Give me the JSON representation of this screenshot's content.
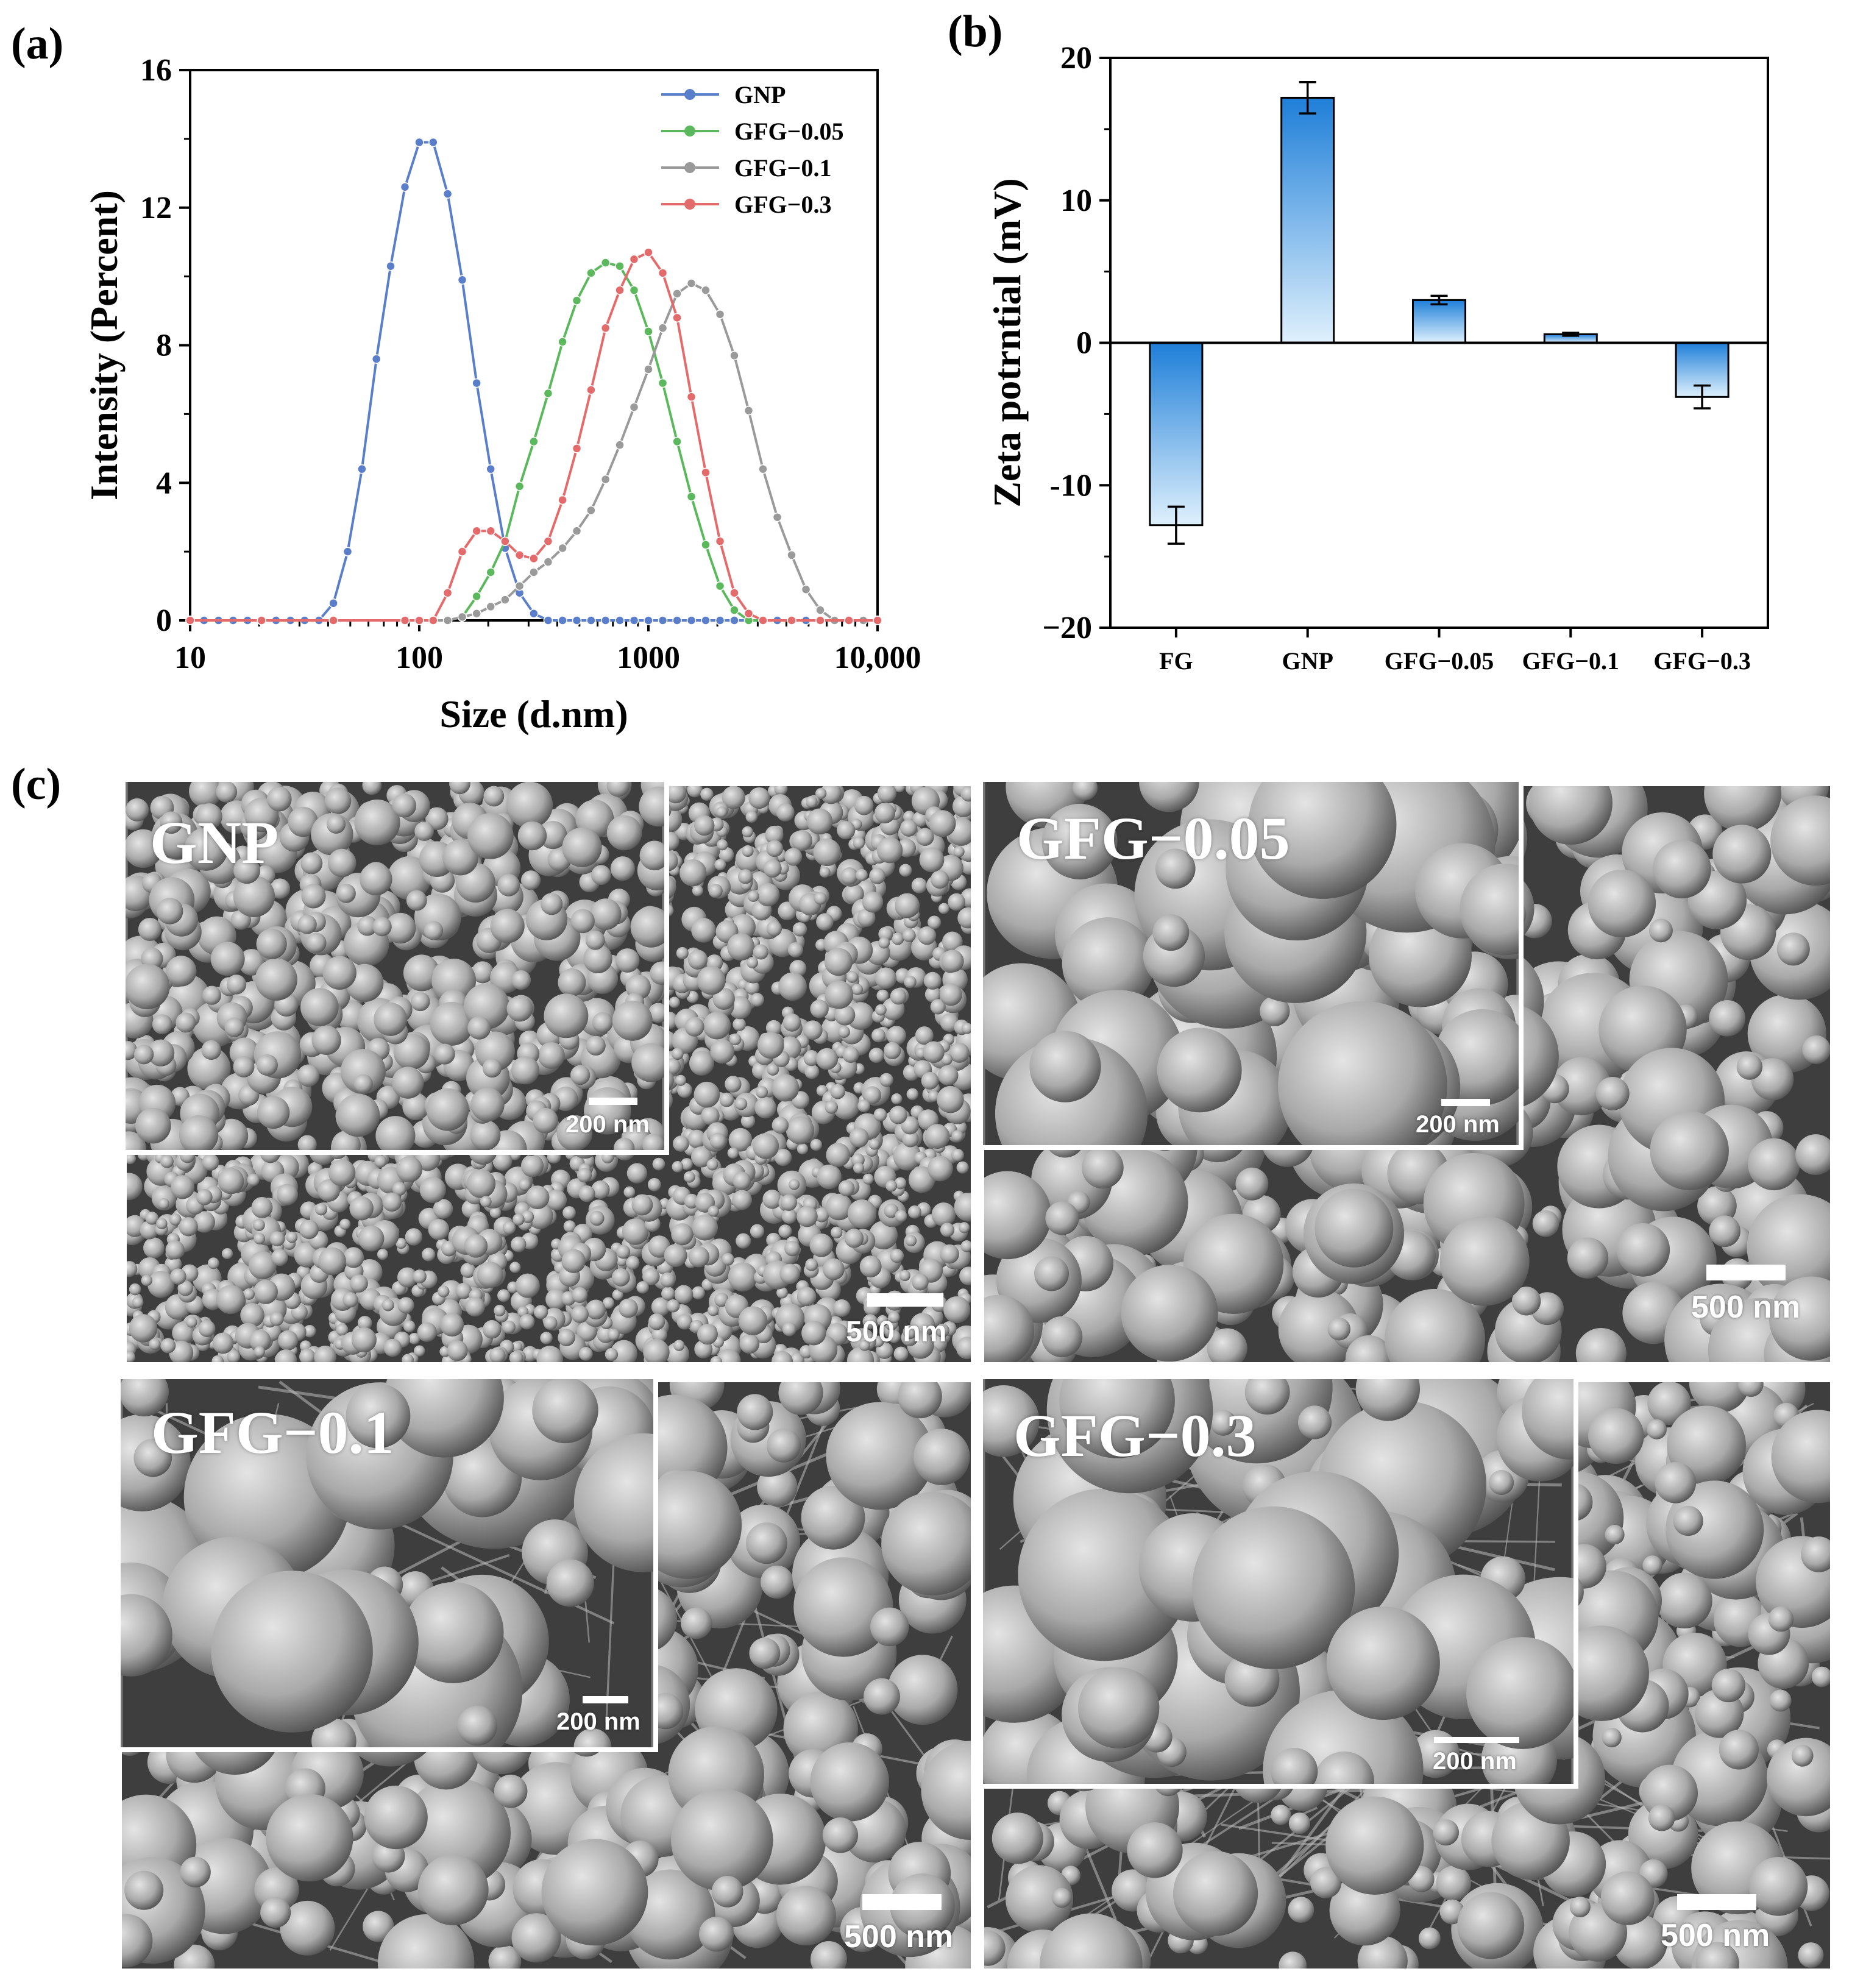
{
  "panels": {
    "a": "(a)",
    "b": "(b)",
    "c": "(c)"
  },
  "chart_data": [
    {
      "type": "line",
      "panel": "a",
      "xlabel": "Size (d.nm)",
      "ylabel": "Intensity (Percent)",
      "xscale": "log",
      "xlim": [
        10,
        10000
      ],
      "ylim": [
        0,
        16
      ],
      "xticks": [
        10,
        100,
        1000,
        10000
      ],
      "xtick_labels": [
        "10",
        "100",
        "1000",
        "10,000"
      ],
      "yticks": [
        0,
        4,
        8,
        12,
        16
      ],
      "ytick_labels": [
        "0",
        "4",
        "8",
        "12",
        "16"
      ],
      "legend_position": "top-right",
      "grid": false,
      "series": [
        {
          "name": "GNP",
          "color": "#5a7ec9",
          "points": [
            [
              10,
              0
            ],
            [
              11.5,
              0
            ],
            [
              13.3,
              0
            ],
            [
              15.4,
              0
            ],
            [
              17.8,
              0
            ],
            [
              20.5,
              0
            ],
            [
              23.7,
              0
            ],
            [
              27.4,
              0
            ],
            [
              31.6,
              0
            ],
            [
              36.5,
              0
            ],
            [
              42.2,
              0.5
            ],
            [
              48.7,
              2.0
            ],
            [
              56.2,
              4.4
            ],
            [
              65,
              7.6
            ],
            [
              75,
              10.3
            ],
            [
              86.6,
              12.6
            ],
            [
              100,
              13.9
            ],
            [
              115,
              13.9
            ],
            [
              133,
              12.4
            ],
            [
              154,
              9.9
            ],
            [
              178,
              6.9
            ],
            [
              205,
              4.4
            ],
            [
              237,
              2.1
            ],
            [
              274,
              0.8
            ],
            [
              316,
              0.2
            ],
            [
              365,
              0
            ],
            [
              422,
              0
            ],
            [
              487,
              0
            ],
            [
              562,
              0
            ],
            [
              650,
              0
            ],
            [
              750,
              0
            ],
            [
              866,
              0
            ],
            [
              1000,
              0
            ],
            [
              1155,
              0
            ],
            [
              1334,
              0
            ],
            [
              1540,
              0
            ],
            [
              1778,
              0
            ],
            [
              2054,
              0
            ],
            [
              2371,
              0
            ],
            [
              2738,
              0
            ],
            [
              3162,
              0
            ],
            [
              3652,
              0
            ],
            [
              4217,
              0
            ],
            [
              4870,
              0
            ],
            [
              5623,
              0
            ],
            [
              6494,
              0
            ],
            [
              7499,
              0
            ],
            [
              8660,
              0
            ],
            [
              10000,
              0
            ]
          ]
        },
        {
          "name": "GFG−0.05",
          "color": "#5cb85c",
          "points": [
            [
              10,
              0
            ],
            [
              20.5,
              0
            ],
            [
              42.2,
              0
            ],
            [
              86.6,
              0
            ],
            [
              100,
              0
            ],
            [
              115,
              0
            ],
            [
              133,
              0
            ],
            [
              154,
              0.1
            ],
            [
              178,
              0.7
            ],
            [
              205,
              1.4
            ],
            [
              237,
              2.3
            ],
            [
              274,
              3.9
            ],
            [
              316,
              5.2
            ],
            [
              365,
              6.6
            ],
            [
              422,
              8.1
            ],
            [
              487,
              9.3
            ],
            [
              562,
              10.1
            ],
            [
              650,
              10.4
            ],
            [
              750,
              10.3
            ],
            [
              866,
              9.6
            ],
            [
              1000,
              8.4
            ],
            [
              1155,
              6.9
            ],
            [
              1334,
              5.2
            ],
            [
              1540,
              3.6
            ],
            [
              1778,
              2.2
            ],
            [
              2054,
              1.0
            ],
            [
              2371,
              0.3
            ],
            [
              2738,
              0
            ],
            [
              3162,
              0
            ],
            [
              4217,
              0
            ],
            [
              5623,
              0
            ],
            [
              7499,
              0
            ],
            [
              10000,
              0
            ]
          ]
        },
        {
          "name": "GFG−0.1",
          "color": "#9a9a9a",
          "points": [
            [
              10,
              0
            ],
            [
              20.5,
              0
            ],
            [
              42.2,
              0
            ],
            [
              86.6,
              0
            ],
            [
              100,
              0
            ],
            [
              115,
              0
            ],
            [
              133,
              0
            ],
            [
              154,
              0.1
            ],
            [
              178,
              0.2
            ],
            [
              205,
              0.4
            ],
            [
              237,
              0.6
            ],
            [
              274,
              1.0
            ],
            [
              316,
              1.4
            ],
            [
              365,
              1.7
            ],
            [
              422,
              2.1
            ],
            [
              487,
              2.6
            ],
            [
              562,
              3.2
            ],
            [
              650,
              4.1
            ],
            [
              750,
              5.1
            ],
            [
              866,
              6.2
            ],
            [
              1000,
              7.3
            ],
            [
              1155,
              8.5
            ],
            [
              1334,
              9.5
            ],
            [
              1540,
              9.8
            ],
            [
              1778,
              9.6
            ],
            [
              2054,
              8.9
            ],
            [
              2371,
              7.7
            ],
            [
              2738,
              6.1
            ],
            [
              3162,
              4.4
            ],
            [
              3652,
              3.0
            ],
            [
              4217,
              1.9
            ],
            [
              4870,
              0.9
            ],
            [
              5623,
              0.3
            ],
            [
              6494,
              0
            ],
            [
              7499,
              0
            ],
            [
              8660,
              0
            ],
            [
              10000,
              0
            ]
          ]
        },
        {
          "name": "GFG−0.3",
          "color": "#e36b6b",
          "points": [
            [
              10,
              0
            ],
            [
              20.5,
              0
            ],
            [
              42.2,
              0
            ],
            [
              86.6,
              0
            ],
            [
              100,
              0
            ],
            [
              115,
              0
            ],
            [
              133,
              0.8
            ],
            [
              154,
              2.0
            ],
            [
              178,
              2.6
            ],
            [
              205,
              2.6
            ],
            [
              237,
              2.3
            ],
            [
              274,
              1.9
            ],
            [
              316,
              1.8
            ],
            [
              365,
              2.3
            ],
            [
              422,
              3.5
            ],
            [
              487,
              5.0
            ],
            [
              562,
              6.7
            ],
            [
              650,
              8.5
            ],
            [
              750,
              9.6
            ],
            [
              866,
              10.5
            ],
            [
              1000,
              10.7
            ],
            [
              1155,
              10.1
            ],
            [
              1334,
              8.8
            ],
            [
              1540,
              6.5
            ],
            [
              1778,
              4.3
            ],
            [
              2054,
              2.3
            ],
            [
              2371,
              0.8
            ],
            [
              2738,
              0.2
            ],
            [
              3162,
              0
            ],
            [
              4217,
              0
            ],
            [
              5623,
              0
            ],
            [
              7499,
              0
            ],
            [
              10000,
              0
            ]
          ]
        }
      ]
    },
    {
      "type": "bar",
      "panel": "b",
      "ylabel": "Zeta potrntial (mV)",
      "categories": [
        "FG",
        "GNP",
        "GFG−0.05",
        "GFG−0.1",
        "GFG−0.3"
      ],
      "values": [
        -12.8,
        17.2,
        3.0,
        0.6,
        -3.8
      ],
      "errors": [
        1.3,
        1.1,
        0.3,
        0.1,
        0.8
      ],
      "ylim": [
        -20,
        20
      ],
      "yticks": [
        -20,
        -10,
        0,
        10,
        20
      ],
      "ytick_labels": [
        "−20",
        "-10",
        "0",
        "10",
        "20"
      ],
      "bar_color_dark": "#1f7fd8",
      "bar_color_light": "#dff0fc",
      "grid": false
    }
  ],
  "sem": {
    "gnp": {
      "label": "GNP",
      "inset_scale": "200 nm",
      "main_scale": "500 nm"
    },
    "gfg005": {
      "label": "GFG−0.05",
      "inset_scale": "200 nm",
      "main_scale": "500 nm"
    },
    "gfg01": {
      "label": "GFG−0.1",
      "inset_scale": "200 nm",
      "main_scale": "500 nm"
    },
    "gfg03": {
      "label": "GFG−0.3",
      "inset_scale": "200 nm",
      "main_scale": "500 nm"
    }
  }
}
